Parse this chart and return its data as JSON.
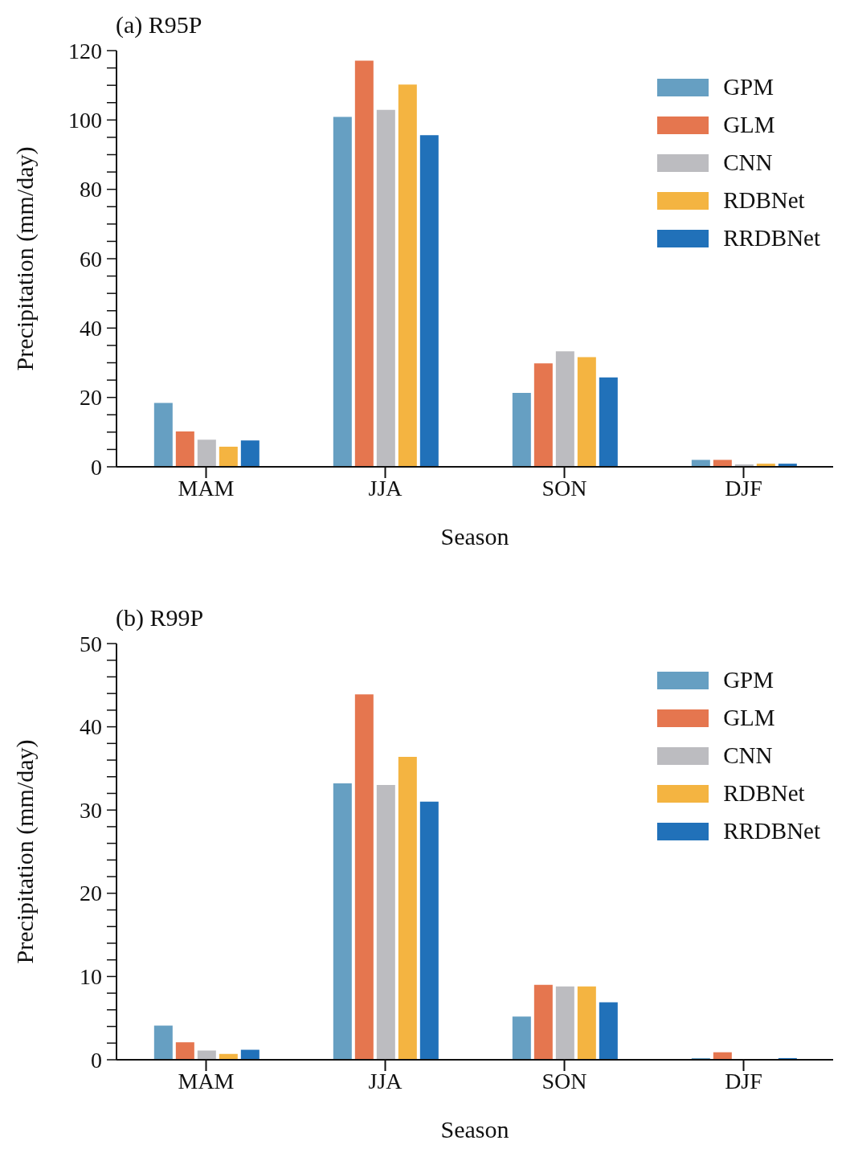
{
  "chart_data": [
    {
      "type": "bar",
      "title": "(a) R95P",
      "xlabel": "Season",
      "ylabel": "Precipitation (mm/day)",
      "categories": [
        "MAM",
        "JJA",
        "SON",
        "DJF"
      ],
      "series": [
        {
          "name": "GPM",
          "color": "#669fc2",
          "values": [
            18.4,
            100.9,
            21.3,
            2.0
          ]
        },
        {
          "name": "GLM",
          "color": "#e5764f",
          "values": [
            10.2,
            117.1,
            29.8,
            2.0
          ]
        },
        {
          "name": "CNN",
          "color": "#bcbcc0",
          "values": [
            7.8,
            102.9,
            33.3,
            0.7
          ]
        },
        {
          "name": "RDBNet",
          "color": "#f4b441",
          "values": [
            5.8,
            110.2,
            31.6,
            0.9
          ]
        },
        {
          "name": "RRDBNet",
          "color": "#2171b9",
          "values": [
            7.6,
            95.6,
            25.8,
            0.9
          ]
        }
      ],
      "ylim": [
        0,
        120
      ],
      "yticks": [
        0,
        {
          "value": 5,
          "label": null
        },
        {
          "value": 10,
          "label": null
        },
        {
          "value": 15,
          "label": null
        },
        20,
        {
          "value": 25,
          "label": null
        },
        {
          "value": 30,
          "label": null
        },
        {
          "value": 35,
          "label": null
        },
        40,
        {
          "value": 45,
          "label": null
        },
        {
          "value": 50,
          "label": null
        },
        {
          "value": 55,
          "label": null
        },
        60,
        {
          "value": 65,
          "label": null
        },
        {
          "value": 70,
          "label": null
        },
        {
          "value": 75,
          "label": null
        },
        80,
        {
          "value": 85,
          "label": null
        },
        {
          "value": 90,
          "label": null
        },
        {
          "value": 95,
          "label": null
        },
        100,
        {
          "value": 105,
          "label": null
        },
        {
          "value": 110,
          "label": null
        },
        {
          "value": 115,
          "label": null
        },
        120
      ],
      "grid": false,
      "legend": "top right"
    },
    {
      "type": "bar",
      "title": "(b) R99P",
      "xlabel": "Season",
      "ylabel": "Precipitation (mm/day)",
      "categories": [
        "MAM",
        "JJA",
        "SON",
        "DJF"
      ],
      "series": [
        {
          "name": "GPM",
          "color": "#669fc2",
          "values": [
            4.1,
            33.2,
            5.2,
            0.2
          ]
        },
        {
          "name": "GLM",
          "color": "#e5764f",
          "values": [
            2.1,
            43.9,
            9.0,
            0.9
          ]
        },
        {
          "name": "CNN",
          "color": "#bcbcc0",
          "values": [
            1.1,
            33.0,
            8.8,
            null
          ]
        },
        {
          "name": "RDBNet",
          "color": "#f4b441",
          "values": [
            0.7,
            36.4,
            8.8,
            null
          ]
        },
        {
          "name": "RRDBNet",
          "color": "#2171b9",
          "values": [
            1.2,
            31.0,
            6.9,
            0.2
          ]
        }
      ],
      "ylim": [
        0,
        50
      ],
      "yticks": [
        0,
        {
          "value": 2,
          "label": null
        },
        {
          "value": 4,
          "label": null
        },
        {
          "value": 6,
          "label": null
        },
        {
          "value": 8,
          "label": null
        },
        10,
        {
          "value": 12,
          "label": null
        },
        {
          "value": 14,
          "label": null
        },
        {
          "value": 16,
          "label": null
        },
        {
          "value": 18,
          "label": null
        },
        20,
        {
          "value": 22,
          "label": null
        },
        {
          "value": 24,
          "label": null
        },
        {
          "value": 26,
          "label": null
        },
        {
          "value": 28,
          "label": null
        },
        30,
        {
          "value": 32,
          "label": null
        },
        {
          "value": 34,
          "label": null
        },
        {
          "value": 36,
          "label": null
        },
        {
          "value": 38,
          "label": null
        },
        40,
        {
          "value": 42,
          "label": null
        },
        {
          "value": 44,
          "label": null
        },
        {
          "value": 46,
          "label": null
        },
        {
          "value": 48,
          "label": null
        },
        50
      ],
      "grid": false,
      "legend": "top right"
    }
  ]
}
